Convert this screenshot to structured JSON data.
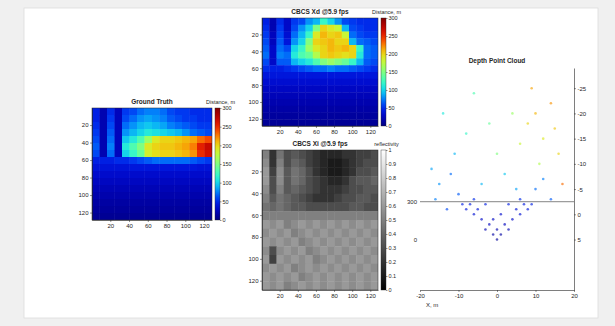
{
  "chart_data": [
    {
      "type": "heatmap",
      "title": "Ground Truth",
      "color": "jet",
      "xlim": [
        0.5,
        128.5
      ],
      "ylim": [
        0.5,
        128.5
      ],
      "xticks": [
        20,
        40,
        60,
        80,
        100,
        120
      ],
      "yticks": [
        20,
        40,
        60,
        80,
        100,
        120
      ],
      "colorbar": {
        "label": "Distance, m",
        "range": [
          0,
          300
        ],
        "ticks": [
          0,
          50,
          100,
          150,
          200,
          250,
          300
        ]
      },
      "cells": [
        [
          45,
          20,
          50,
          25,
          55,
          60,
          70,
          75,
          75,
          70,
          60,
          55,
          55,
          50,
          50,
          50
        ],
        [
          45,
          20,
          55,
          25,
          60,
          70,
          80,
          85,
          80,
          75,
          65,
          60,
          55,
          55,
          50,
          50
        ],
        [
          50,
          20,
          60,
          25,
          70,
          80,
          90,
          95,
          90,
          85,
          75,
          70,
          65,
          60,
          55,
          55
        ],
        [
          55,
          20,
          65,
          25,
          80,
          90,
          100,
          110,
          105,
          100,
          95,
          90,
          80,
          70,
          65,
          60
        ],
        [
          60,
          20,
          70,
          25,
          95,
          110,
          130,
          160,
          190,
          200,
          200,
          205,
          210,
          215,
          230,
          240
        ],
        [
          65,
          20,
          75,
          25,
          110,
          130,
          150,
          190,
          200,
          205,
          205,
          210,
          215,
          225,
          255,
          270
        ],
        [
          60,
          20,
          70,
          25,
          100,
          120,
          140,
          185,
          195,
          200,
          200,
          205,
          210,
          220,
          250,
          265
        ],
        [
          45,
          45,
          45,
          50,
          50,
          55,
          60,
          65,
          70,
          70,
          70,
          70,
          70,
          65,
          60,
          55
        ],
        [
          38,
          38,
          38,
          38,
          38,
          40,
          40,
          40,
          40,
          40,
          40,
          40,
          40,
          40,
          38,
          38
        ],
        [
          32,
          32,
          32,
          32,
          32,
          32,
          32,
          32,
          32,
          32,
          32,
          32,
          32,
          32,
          32,
          32
        ],
        [
          27,
          27,
          27,
          27,
          27,
          27,
          27,
          27,
          27,
          27,
          27,
          27,
          27,
          27,
          27,
          27
        ],
        [
          22,
          22,
          22,
          22,
          22,
          22,
          22,
          22,
          22,
          22,
          22,
          22,
          22,
          22,
          22,
          22
        ],
        [
          18,
          18,
          18,
          18,
          18,
          18,
          18,
          18,
          18,
          18,
          18,
          18,
          18,
          18,
          18,
          18
        ],
        [
          14,
          14,
          14,
          14,
          14,
          14,
          14,
          14,
          14,
          14,
          14,
          14,
          14,
          14,
          14,
          14
        ],
        [
          11,
          11,
          11,
          11,
          11,
          11,
          11,
          11,
          11,
          11,
          11,
          11,
          11,
          11,
          11,
          11
        ],
        [
          8,
          8,
          8,
          8,
          8,
          8,
          8,
          8,
          8,
          8,
          8,
          8,
          8,
          8,
          8,
          8
        ]
      ]
    },
    {
      "type": "heatmap",
      "title": "CBCS Xd @5.9 fps",
      "color": "jet",
      "xlim": [
        0.5,
        128.5
      ],
      "ylim": [
        0.5,
        128.5
      ],
      "xticks": [
        20,
        40,
        60,
        80,
        100,
        120
      ],
      "yticks": [
        20,
        40,
        60,
        80,
        100,
        120
      ],
      "colorbar": {
        "label": "Distance, m",
        "range": [
          0,
          300
        ],
        "ticks": [
          0,
          50,
          100,
          150,
          200,
          250,
          300
        ]
      },
      "cells": [
        [
          45,
          20,
          50,
          30,
          55,
          60,
          80,
          90,
          120,
          100,
          80,
          60,
          55,
          50,
          50,
          50
        ],
        [
          50,
          20,
          55,
          30,
          60,
          80,
          100,
          150,
          200,
          190,
          180,
          90,
          60,
          55,
          50,
          50
        ],
        [
          55,
          25,
          60,
          35,
          70,
          90,
          120,
          190,
          210,
          200,
          205,
          180,
          70,
          60,
          55,
          55
        ],
        [
          60,
          25,
          65,
          40,
          80,
          100,
          150,
          200,
          205,
          210,
          200,
          200,
          90,
          70,
          65,
          60
        ],
        [
          65,
          30,
          70,
          60,
          100,
          120,
          160,
          190,
          200,
          210,
          205,
          210,
          200,
          120,
          70,
          65
        ],
        [
          70,
          30,
          75,
          70,
          110,
          130,
          140,
          170,
          200,
          205,
          200,
          195,
          200,
          110,
          70,
          65
        ],
        [
          60,
          30,
          65,
          65,
          90,
          100,
          110,
          130,
          150,
          160,
          150,
          140,
          120,
          90,
          65,
          60
        ],
        [
          50,
          45,
          45,
          50,
          55,
          60,
          65,
          70,
          70,
          75,
          70,
          70,
          65,
          60,
          55,
          50
        ],
        [
          40,
          40,
          40,
          40,
          40,
          40,
          40,
          40,
          40,
          40,
          40,
          40,
          40,
          40,
          40,
          40
        ],
        [
          34,
          34,
          34,
          34,
          34,
          34,
          34,
          34,
          34,
          34,
          34,
          34,
          34,
          34,
          34,
          34
        ],
        [
          28,
          28,
          28,
          28,
          28,
          28,
          28,
          28,
          28,
          28,
          28,
          28,
          28,
          28,
          28,
          28
        ],
        [
          23,
          23,
          23,
          23,
          23,
          23,
          23,
          23,
          23,
          23,
          23,
          23,
          23,
          23,
          23,
          23
        ],
        [
          19,
          19,
          19,
          19,
          19,
          19,
          19,
          19,
          19,
          19,
          19,
          19,
          19,
          19,
          19,
          19
        ],
        [
          15,
          15,
          15,
          15,
          15,
          15,
          15,
          15,
          15,
          15,
          15,
          15,
          15,
          15,
          15,
          15
        ],
        [
          12,
          12,
          12,
          12,
          12,
          12,
          12,
          12,
          12,
          12,
          12,
          12,
          12,
          12,
          12,
          12
        ],
        [
          9,
          9,
          9,
          9,
          9,
          9,
          9,
          9,
          9,
          9,
          9,
          9,
          9,
          9,
          9,
          9
        ]
      ]
    },
    {
      "type": "heatmap",
      "title": "CBCS Xi @5.9 fps",
      "color": "gray",
      "xlim": [
        0.5,
        128.5
      ],
      "ylim": [
        0.5,
        128.5
      ],
      "xticks": [
        20,
        40,
        60,
        80,
        100,
        120
      ],
      "yticks": [
        20,
        40,
        60,
        80,
        100,
        120
      ],
      "colorbar": {
        "label": "reflectivity",
        "range": [
          0,
          1
        ],
        "ticks": [
          0,
          0.1,
          0.2,
          0.3,
          0.4,
          0.5,
          0.6,
          0.7,
          0.8,
          0.9,
          1
        ]
      },
      "cells": [
        [
          0.5,
          0.2,
          0.45,
          0.3,
          0.35,
          0.3,
          0.25,
          0.2,
          0.15,
          0.15,
          0.15,
          0.2,
          0.2,
          0.25,
          0.25,
          0.3
        ],
        [
          0.55,
          0.2,
          0.5,
          0.3,
          0.4,
          0.35,
          0.25,
          0.2,
          0.15,
          0.1,
          0.1,
          0.15,
          0.2,
          0.25,
          0.3,
          0.3
        ],
        [
          0.6,
          0.25,
          0.55,
          0.35,
          0.45,
          0.4,
          0.3,
          0.2,
          0.15,
          0.1,
          0.1,
          0.15,
          0.2,
          0.3,
          0.3,
          0.35
        ],
        [
          0.6,
          0.3,
          0.55,
          0.35,
          0.45,
          0.4,
          0.3,
          0.25,
          0.2,
          0.15,
          0.15,
          0.2,
          0.3,
          0.35,
          0.35,
          0.4
        ],
        [
          0.55,
          0.3,
          0.5,
          0.35,
          0.4,
          0.35,
          0.3,
          0.25,
          0.2,
          0.2,
          0.2,
          0.25,
          0.3,
          0.3,
          0.35,
          0.35
        ],
        [
          0.5,
          0.35,
          0.45,
          0.4,
          0.35,
          0.3,
          0.25,
          0.2,
          0.2,
          0.2,
          0.25,
          0.3,
          0.3,
          0.35,
          0.35,
          0.3
        ],
        [
          0.45,
          0.4,
          0.45,
          0.4,
          0.35,
          0.35,
          0.3,
          0.3,
          0.3,
          0.3,
          0.3,
          0.3,
          0.35,
          0.35,
          0.3,
          0.3
        ],
        [
          0.5,
          0.5,
          0.5,
          0.5,
          0.5,
          0.5,
          0.5,
          0.5,
          0.5,
          0.5,
          0.5,
          0.5,
          0.5,
          0.5,
          0.5,
          0.5
        ],
        [
          0.6,
          0.55,
          0.6,
          0.5,
          0.55,
          0.6,
          0.55,
          0.6,
          0.55,
          0.6,
          0.55,
          0.6,
          0.55,
          0.6,
          0.55,
          0.6
        ],
        [
          0.55,
          0.6,
          0.55,
          0.6,
          0.5,
          0.55,
          0.6,
          0.55,
          0.6,
          0.55,
          0.6,
          0.55,
          0.6,
          0.55,
          0.6,
          0.55
        ],
        [
          0.6,
          0.55,
          0.6,
          0.55,
          0.6,
          0.5,
          0.55,
          0.6,
          0.55,
          0.6,
          0.55,
          0.6,
          0.55,
          0.6,
          0.55,
          0.6
        ],
        [
          0.55,
          0.3,
          0.55,
          0.6,
          0.55,
          0.6,
          0.5,
          0.55,
          0.6,
          0.55,
          0.6,
          0.55,
          0.6,
          0.55,
          0.6,
          0.55
        ],
        [
          0.6,
          0.25,
          0.6,
          0.55,
          0.6,
          0.55,
          0.6,
          0.5,
          0.55,
          0.6,
          0.55,
          0.6,
          0.55,
          0.6,
          0.55,
          0.6
        ],
        [
          0.55,
          0.6,
          0.55,
          0.6,
          0.5,
          0.55,
          0.6,
          0.55,
          0.6,
          0.55,
          0.6,
          0.55,
          0.6,
          0.55,
          0.6,
          0.55
        ],
        [
          0.6,
          0.55,
          0.6,
          0.55,
          0.6,
          0.5,
          0.55,
          0.6,
          0.55,
          0.6,
          0.55,
          0.6,
          0.55,
          0.6,
          0.55,
          0.6
        ],
        [
          0.6,
          0.55,
          0.6,
          0.5,
          0.55,
          0.6,
          0.55,
          0.6,
          0.55,
          0.6,
          0.55,
          0.6,
          0.55,
          0.6,
          0.55,
          0.6
        ]
      ]
    },
    {
      "type": "scatter",
      "title": "Depth Point Cloud",
      "xlabel": "X, m",
      "color": "jet",
      "xlim": [
        -20,
        20
      ],
      "ylim": [
        15,
        -29
      ],
      "xticks": [
        -20,
        -10,
        0,
        10,
        20
      ],
      "yticks": [
        -25,
        -20,
        -15,
        -10,
        -5,
        0,
        5
      ],
      "clim": [
        0,
        300
      ],
      "hlines": [
        -2.5
      ],
      "annotations": [
        {
          "text": "300",
          "y": -2.5
        },
        {
          "text": "0",
          "y": 5
        }
      ],
      "x": [
        -8,
        -6,
        -4,
        -2,
        0,
        2,
        4,
        6,
        8,
        -5,
        5,
        -3,
        3,
        -1,
        1,
        0,
        -7,
        7,
        -1,
        1,
        9,
        -9,
        3,
        -3,
        6,
        -6,
        -15,
        -12,
        -10,
        -16,
        -13,
        -11,
        -17,
        10,
        12,
        14,
        -4,
        2,
        5,
        8,
        10,
        12,
        14,
        16,
        6,
        9,
        15,
        11,
        4,
        -2,
        -8,
        -14,
        -6,
        17,
        0
      ],
      "values": [
        -1,
        0,
        1,
        2,
        3,
        2,
        1,
        0,
        -1,
        -1,
        -1,
        3,
        3,
        4,
        4,
        5,
        -2,
        -2,
        1,
        0,
        -2,
        -2,
        -2,
        -2,
        -3,
        -3,
        -6,
        -8,
        -4,
        -3,
        -1,
        -12,
        -9,
        -5,
        -7,
        -3,
        -6,
        -8,
        -5,
        -18,
        -20,
        -15,
        -22,
        -12,
        -14,
        -25,
        -17,
        -10,
        -20,
        -18,
        -16,
        -20,
        -24,
        -6,
        -12
      ],
      "distance": [
        40,
        35,
        30,
        25,
        18,
        25,
        30,
        35,
        40,
        38,
        38,
        20,
        20,
        14,
        14,
        10,
        42,
        42,
        28,
        32,
        45,
        45,
        44,
        44,
        50,
        50,
        80,
        70,
        65,
        75,
        60,
        90,
        85,
        70,
        75,
        65,
        90,
        95,
        85,
        200,
        210,
        190,
        220,
        200,
        180,
        215,
        205,
        170,
        160,
        140,
        120,
        110,
        130,
        230,
        150
      ]
    }
  ]
}
